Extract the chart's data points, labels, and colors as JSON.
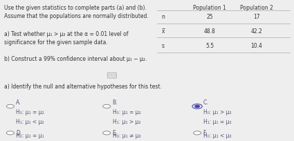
{
  "bg_color": "#eeeeee",
  "text_color": "#333333",
  "option_color": "#555577",
  "selected_circle_color": "#4444aa",
  "table_line_color": "#aaaaaa",
  "table_headers": [
    "",
    "Population 1",
    "Population 2"
  ],
  "table_rows": [
    [
      "n",
      "25",
      "17"
    ],
    [
      "x̅",
      "48.8",
      "42.2"
    ],
    [
      "s",
      "5.5",
      "10.4"
    ]
  ],
  "options": [
    {
      "label": "A.",
      "h0": "H₀: μ₁ = μ₂",
      "h1": "H₁: μ₁ < μ₂",
      "selected": false
    },
    {
      "label": "B.",
      "h0": "H₀: μ₁ = μ₂",
      "h1": "H₁: μ₁ > μ₂",
      "selected": false
    },
    {
      "label": "C.",
      "h0": "H₀: μ₁ > μ₂",
      "h1": "H₁: μ₁ = μ₂",
      "selected": true
    }
  ],
  "options_row2": [
    {
      "label": "D.",
      "h0": "H₀: μ₁ = μ₁",
      "selected": false
    },
    {
      "label": "E.",
      "h0": "H₀: μ₁ ≠ μ₂",
      "selected": false
    },
    {
      "label": "F.",
      "h0": "H₀: μ₁ < μ₂",
      "selected": false
    }
  ]
}
